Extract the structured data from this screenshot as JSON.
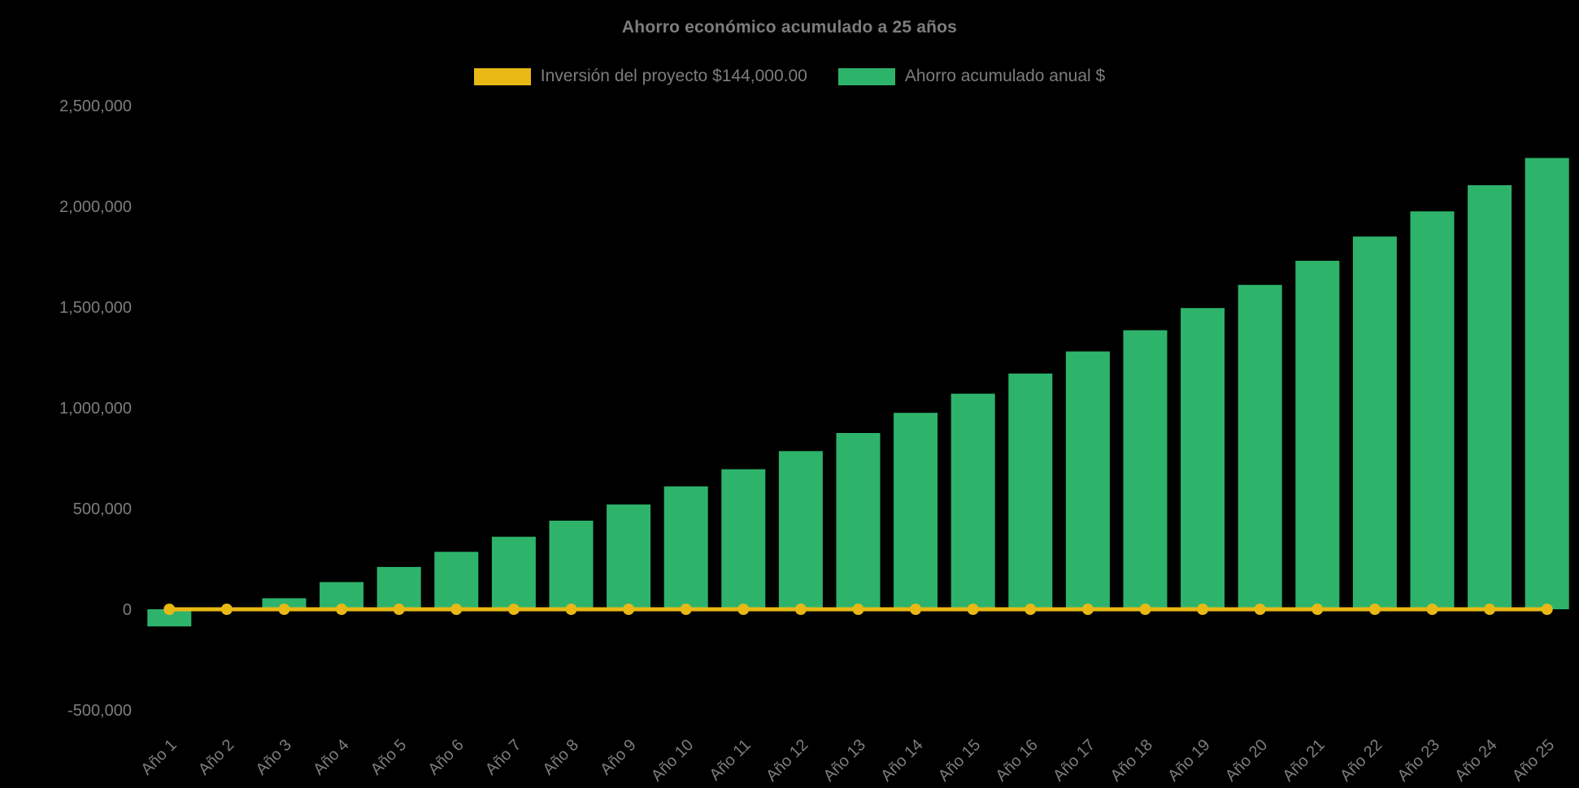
{
  "title": "Ahorro económico acumulado a 25 años",
  "legend": [
    {
      "label": "Inversión del proyecto $144,000.00",
      "color": "#e9b815"
    },
    {
      "label": "Ahorro acumulado anual $",
      "color": "#2eb36b"
    }
  ],
  "colors": {
    "background": "#000000",
    "text": "#7d7d7d",
    "bar_green": "#2eb36b",
    "line_gold": "#e9b815"
  },
  "chart_data": {
    "type": "bar",
    "title": "Ahorro económico acumulado a 25 años",
    "categories": [
      "Año 1",
      "Año 2",
      "Año 3",
      "Año 4",
      "Año 5",
      "Año 6",
      "Año 7",
      "Año 8",
      "Año 9",
      "Año 10",
      "Año 11",
      "Año 12",
      "Año 13",
      "Año 14",
      "Año 15",
      "Año 16",
      "Año 17",
      "Año 18",
      "Año 19",
      "Año 20",
      "Año 21",
      "Año 22",
      "Año 23",
      "Año 24",
      "Año 25"
    ],
    "series": [
      {
        "name": "Ahorro acumulado anual $",
        "type": "bar",
        "color": "#2eb36b",
        "values": [
          -85000,
          5000,
          55000,
          135000,
          210000,
          285000,
          360000,
          440000,
          520000,
          610000,
          695000,
          785000,
          875000,
          975000,
          1070000,
          1170000,
          1280000,
          1385000,
          1495000,
          1610000,
          1730000,
          1850000,
          1975000,
          2105000,
          2240000
        ]
      },
      {
        "name": "Inversión del proyecto $144,000.00",
        "type": "line",
        "color": "#e9b815",
        "point_color": "#e9b815",
        "displayed_constant_value": 0
      }
    ],
    "y_ticks": [
      {
        "label": "-500,000",
        "value": -500000
      },
      {
        "label": "0",
        "value": 0
      },
      {
        "label": "500,000",
        "value": 500000
      },
      {
        "label": "1,000,000",
        "value": 1000000
      },
      {
        "label": "1,500,000",
        "value": 1500000
      },
      {
        "label": "2,000,000",
        "value": 2000000
      },
      {
        "label": "2,500,000",
        "value": 2500000
      }
    ],
    "ylim": [
      -500000,
      2500000
    ],
    "grid": false,
    "legend_position": "top",
    "x_label_rotation": -45
  }
}
